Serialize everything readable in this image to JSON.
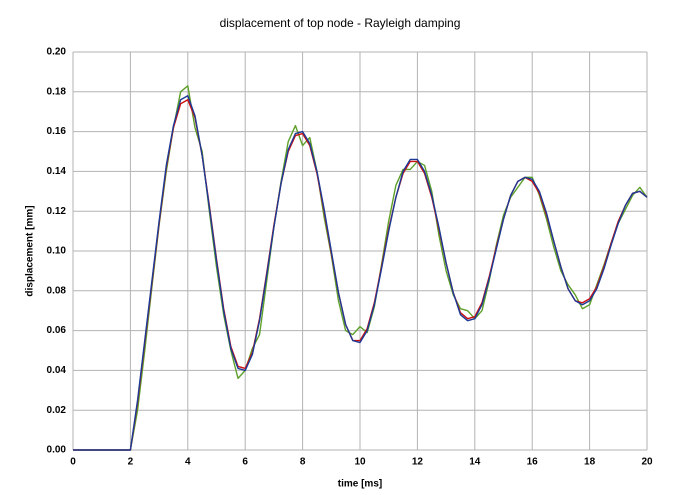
{
  "chart_data": {
    "type": "line",
    "title": "displacement of top node - Rayleigh damping",
    "x_label": "time [ms]",
    "y_label": "displacement [mm]",
    "xlim": [
      0,
      20
    ],
    "ylim": [
      0,
      0.2
    ],
    "xticks": [
      0,
      2,
      4,
      6,
      8,
      10,
      12,
      14,
      16,
      18,
      20
    ],
    "yticks": [
      {
        "value": 0,
        "label": "0.00"
      },
      {
        "value": 0.02,
        "label": "0.02"
      },
      {
        "value": 0.04,
        "label": "0.04"
      },
      {
        "value": 0.06,
        "label": "0.06"
      },
      {
        "value": 0.08,
        "label": "0.08"
      },
      {
        "value": 0.1,
        "label": "0.10"
      },
      {
        "value": 0.12,
        "label": "0.12"
      },
      {
        "value": 0.14,
        "label": "0.14"
      },
      {
        "value": 0.16,
        "label": "0.16"
      },
      {
        "value": 0.18,
        "label": "0.18"
      },
      {
        "value": 0.2,
        "label": "0.20"
      }
    ],
    "grid": true,
    "x": [
      0,
      0.25,
      0.5,
      0.75,
      1,
      1.25,
      1.5,
      1.75,
      2,
      2.25,
      2.5,
      2.75,
      3,
      3.25,
      3.5,
      3.75,
      4,
      4.25,
      4.5,
      4.75,
      5,
      5.25,
      5.5,
      5.75,
      6,
      6.25,
      6.5,
      6.75,
      7,
      7.25,
      7.5,
      7.75,
      8,
      8.25,
      8.5,
      8.75,
      9,
      9.25,
      9.5,
      9.75,
      10,
      10.25,
      10.5,
      10.75,
      11,
      11.25,
      11.5,
      11.75,
      12,
      12.25,
      12.5,
      12.75,
      13,
      13.25,
      13.5,
      13.75,
      14,
      14.25,
      14.5,
      14.75,
      15,
      15.25,
      15.5,
      15.75,
      16,
      16.25,
      16.5,
      16.75,
      17,
      17.25,
      17.5,
      17.75,
      18,
      18.25,
      18.5,
      18.75,
      19,
      19.25,
      19.5,
      19.75,
      20
    ],
    "series": [
      {
        "color": "#5ea02a",
        "values": [
          0,
          0,
          0,
          0,
          0,
          0,
          0,
          0,
          0,
          0.02,
          0.05,
          0.082,
          0.113,
          0.14,
          0.162,
          0.18,
          0.183,
          0.162,
          0.15,
          0.12,
          0.092,
          0.068,
          0.05,
          0.036,
          0.04,
          0.051,
          0.058,
          0.085,
          0.112,
          0.135,
          0.155,
          0.163,
          0.153,
          0.157,
          0.14,
          0.117,
          0.098,
          0.075,
          0.06,
          0.058,
          0.062,
          0.059,
          0.072,
          0.093,
          0.115,
          0.133,
          0.141,
          0.141,
          0.145,
          0.143,
          0.13,
          0.108,
          0.09,
          0.078,
          0.071,
          0.07,
          0.066,
          0.07,
          0.085,
          0.103,
          0.118,
          0.127,
          0.132,
          0.137,
          0.137,
          0.128,
          0.116,
          0.102,
          0.09,
          0.083,
          0.078,
          0.071,
          0.073,
          0.083,
          0.093,
          0.104,
          0.114,
          0.121,
          0.128,
          0.132,
          0.127
        ]
      },
      {
        "color": "#cc1010",
        "values": [
          0,
          0,
          0,
          0,
          0,
          0,
          0,
          0,
          0,
          0.024,
          0.054,
          0.084,
          0.114,
          0.142,
          0.162,
          0.174,
          0.176,
          0.167,
          0.148,
          0.123,
          0.096,
          0.071,
          0.052,
          0.042,
          0.041,
          0.049,
          0.066,
          0.089,
          0.113,
          0.134,
          0.15,
          0.158,
          0.159,
          0.153,
          0.139,
          0.12,
          0.099,
          0.079,
          0.063,
          0.055,
          0.055,
          0.061,
          0.074,
          0.092,
          0.111,
          0.127,
          0.139,
          0.145,
          0.145,
          0.139,
          0.127,
          0.111,
          0.094,
          0.079,
          0.069,
          0.066,
          0.067,
          0.074,
          0.087,
          0.102,
          0.116,
          0.128,
          0.135,
          0.137,
          0.135,
          0.129,
          0.118,
          0.105,
          0.092,
          0.081,
          0.075,
          0.074,
          0.076,
          0.082,
          0.092,
          0.104,
          0.115,
          0.123,
          0.129,
          0.13,
          0.127
        ]
      },
      {
        "color": "#1c3a96",
        "values": [
          0,
          0,
          0,
          0,
          0,
          0,
          0,
          0,
          0,
          0.025,
          0.055,
          0.085,
          0.115,
          0.143,
          0.163,
          0.176,
          0.178,
          0.168,
          0.148,
          0.122,
          0.095,
          0.07,
          0.051,
          0.041,
          0.04,
          0.048,
          0.065,
          0.088,
          0.112,
          0.134,
          0.151,
          0.159,
          0.16,
          0.154,
          0.14,
          0.121,
          0.1,
          0.079,
          0.063,
          0.055,
          0.054,
          0.06,
          0.073,
          0.091,
          0.11,
          0.127,
          0.14,
          0.146,
          0.146,
          0.14,
          0.128,
          0.112,
          0.094,
          0.079,
          0.068,
          0.065,
          0.066,
          0.073,
          0.086,
          0.101,
          0.116,
          0.128,
          0.135,
          0.137,
          0.136,
          0.13,
          0.119,
          0.105,
          0.092,
          0.081,
          0.075,
          0.073,
          0.075,
          0.081,
          0.091,
          0.103,
          0.114,
          0.123,
          0.129,
          0.13,
          0.127
        ]
      }
    ]
  }
}
